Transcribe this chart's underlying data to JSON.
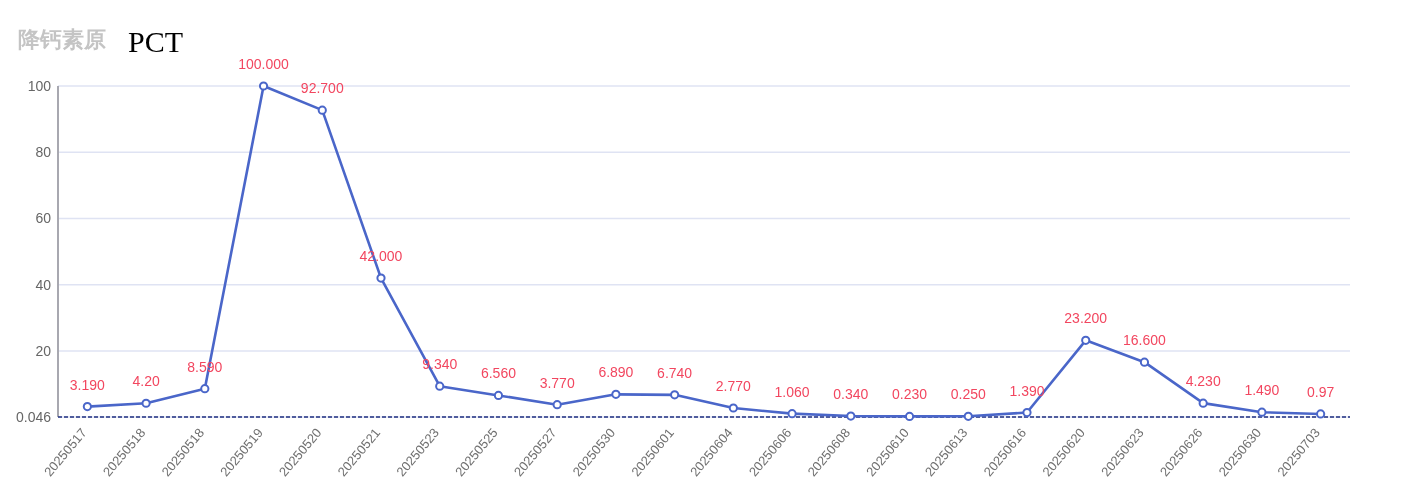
{
  "chart_data": {
    "type": "line",
    "title": "降钙素原",
    "subtitle": "PCT",
    "categories": [
      "20250517",
      "20250518",
      "20250518",
      "20250519",
      "20250520",
      "20250521",
      "20250523",
      "20250525",
      "20250527",
      "20250530",
      "20250601",
      "20250604",
      "20250606",
      "20250608",
      "20250610",
      "20250613",
      "20250616",
      "20250620",
      "20250623",
      "20250626",
      "20250630",
      "20250703"
    ],
    "series": [
      {
        "color": "#4a66c9",
        "values": [
          3.19,
          4.2,
          8.59,
          100,
          92.7,
          42,
          9.34,
          6.56,
          3.77,
          6.89,
          6.74,
          2.77,
          1.06,
          0.34,
          0.23,
          0.25,
          1.39,
          23.2,
          16.6,
          4.23,
          1.49,
          0.97
        ],
        "value_labels": [
          "3.190",
          "4.20",
          "8.590",
          "100.000",
          "92.700",
          "42.000",
          "9.340",
          "6.560",
          "3.770",
          "6.890",
          "6.740",
          "2.770",
          "1.060",
          "0.340",
          "0.230",
          "0.250",
          "1.390",
          "23.200",
          "16.600",
          "4.230",
          "1.490",
          "0.97"
        ]
      }
    ],
    "ylim": [
      0.046,
      100
    ],
    "yticks": [
      0.046,
      20,
      40,
      60,
      80,
      100
    ],
    "grid": "y",
    "marker": "circle"
  }
}
